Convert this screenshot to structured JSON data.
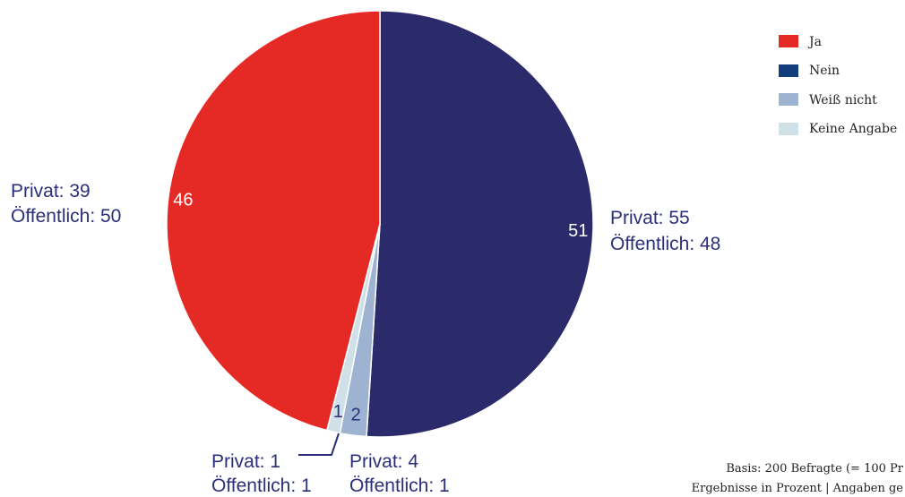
{
  "chart_data": {
    "type": "pie",
    "slices": [
      {
        "name": "Nein",
        "value": 51,
        "color": "#2b2a6b"
      },
      {
        "name": "Weiß nicht",
        "value": 2,
        "color": "#9db3d1"
      },
      {
        "name": "Keine Angabe",
        "value": 1,
        "color": "#cfe0e8"
      },
      {
        "name": "Ja",
        "value": 46,
        "color": "#e52a26"
      }
    ],
    "legend": [
      {
        "label": "Ja",
        "color": "#e52a26"
      },
      {
        "label": "Nein",
        "color": "#123e7c"
      },
      {
        "label": "Weiß nicht",
        "color": "#9db3d1"
      },
      {
        "label": "Keine Angabe",
        "color": "#cfe0e8"
      }
    ],
    "legend_position": "top-right",
    "annotations": {
      "ja": {
        "line1": "Privat: 39",
        "line2": "Öffentlich: 50"
      },
      "nein": {
        "line1": "Privat: 55",
        "line2": "Öffentlich: 48"
      },
      "keine_angabe": {
        "line1": "Privat: 1",
        "line2": "Öffentlich: 1"
      },
      "weiss_nicht": {
        "line1": "Privat: 4",
        "line2": "Öffentlich: 1"
      }
    }
  },
  "footer": {
    "line1": "Basis: 200 Befragte  (= 100 Pr",
    "line2": "Ergebnisse in Prozent | Angaben ge"
  }
}
